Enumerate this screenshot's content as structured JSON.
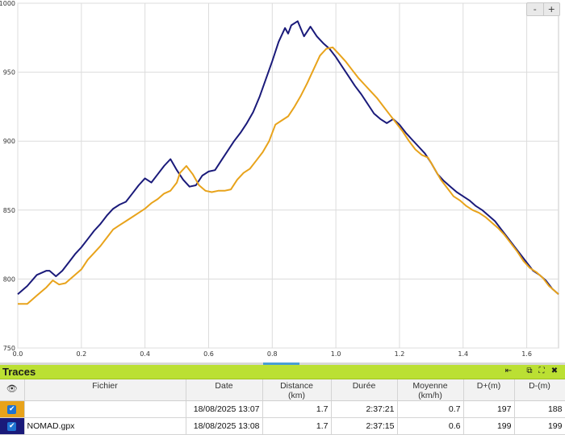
{
  "chart_data": {
    "type": "line",
    "xlim": [
      0,
      1.7
    ],
    "ylim": [
      750,
      1000
    ],
    "x_ticks": [
      "0.0",
      "0.2",
      "0.4",
      "0.6",
      "0.8",
      "1.0",
      "1.2",
      "1.4",
      "1.6"
    ],
    "y_ticks": [
      "750",
      "800",
      "850",
      "900",
      "950",
      "1000"
    ],
    "grid": true,
    "series": [
      {
        "color": "#1a1a7a",
        "points": [
          [
            0.0,
            789
          ],
          [
            0.03,
            795
          ],
          [
            0.06,
            803
          ],
          [
            0.09,
            806
          ],
          [
            0.1,
            806
          ],
          [
            0.12,
            802
          ],
          [
            0.14,
            806
          ],
          [
            0.16,
            812
          ],
          [
            0.18,
            818
          ],
          [
            0.2,
            823
          ],
          [
            0.22,
            829
          ],
          [
            0.24,
            835
          ],
          [
            0.26,
            840
          ],
          [
            0.28,
            846
          ],
          [
            0.3,
            851
          ],
          [
            0.32,
            854
          ],
          [
            0.34,
            856
          ],
          [
            0.36,
            862
          ],
          [
            0.38,
            868
          ],
          [
            0.4,
            873
          ],
          [
            0.42,
            870
          ],
          [
            0.44,
            876
          ],
          [
            0.46,
            882
          ],
          [
            0.48,
            887
          ],
          [
            0.5,
            879
          ],
          [
            0.52,
            872
          ],
          [
            0.54,
            867
          ],
          [
            0.56,
            868
          ],
          [
            0.58,
            875
          ],
          [
            0.6,
            878
          ],
          [
            0.62,
            879
          ],
          [
            0.64,
            886
          ],
          [
            0.66,
            893
          ],
          [
            0.68,
            900
          ],
          [
            0.7,
            906
          ],
          [
            0.72,
            913
          ],
          [
            0.74,
            921
          ],
          [
            0.76,
            932
          ],
          [
            0.78,
            945
          ],
          [
            0.8,
            958
          ],
          [
            0.82,
            972
          ],
          [
            0.84,
            982
          ],
          [
            0.85,
            978
          ],
          [
            0.86,
            984
          ],
          [
            0.88,
            987
          ],
          [
            0.9,
            976
          ],
          [
            0.92,
            983
          ],
          [
            0.94,
            976
          ],
          [
            0.96,
            971
          ],
          [
            0.98,
            967
          ],
          [
            1.0,
            961
          ],
          [
            1.02,
            954
          ],
          [
            1.04,
            947
          ],
          [
            1.06,
            940
          ],
          [
            1.08,
            934
          ],
          [
            1.1,
            927
          ],
          [
            1.12,
            920
          ],
          [
            1.14,
            916
          ],
          [
            1.16,
            913
          ],
          [
            1.18,
            916
          ],
          [
            1.2,
            912
          ],
          [
            1.22,
            906
          ],
          [
            1.24,
            901
          ],
          [
            1.26,
            896
          ],
          [
            1.28,
            891
          ],
          [
            1.3,
            884
          ],
          [
            1.32,
            876
          ],
          [
            1.34,
            871
          ],
          [
            1.36,
            867
          ],
          [
            1.38,
            863
          ],
          [
            1.4,
            860
          ],
          [
            1.42,
            857
          ],
          [
            1.44,
            853
          ],
          [
            1.46,
            850
          ],
          [
            1.48,
            846
          ],
          [
            1.5,
            842
          ],
          [
            1.52,
            836
          ],
          [
            1.54,
            830
          ],
          [
            1.56,
            824
          ],
          [
            1.58,
            818
          ],
          [
            1.6,
            812
          ],
          [
            1.62,
            806
          ],
          [
            1.64,
            803
          ],
          [
            1.66,
            799
          ],
          [
            1.68,
            793
          ],
          [
            1.7,
            789
          ]
        ]
      },
      {
        "color": "#e8a31b",
        "points": [
          [
            0.0,
            782
          ],
          [
            0.03,
            782
          ],
          [
            0.06,
            788
          ],
          [
            0.09,
            794
          ],
          [
            0.11,
            799
          ],
          [
            0.13,
            796
          ],
          [
            0.15,
            797
          ],
          [
            0.18,
            803
          ],
          [
            0.2,
            807
          ],
          [
            0.22,
            814
          ],
          [
            0.24,
            819
          ],
          [
            0.26,
            824
          ],
          [
            0.28,
            830
          ],
          [
            0.3,
            836
          ],
          [
            0.32,
            839
          ],
          [
            0.34,
            842
          ],
          [
            0.36,
            845
          ],
          [
            0.38,
            848
          ],
          [
            0.4,
            851
          ],
          [
            0.42,
            855
          ],
          [
            0.44,
            858
          ],
          [
            0.46,
            862
          ],
          [
            0.48,
            864
          ],
          [
            0.5,
            870
          ],
          [
            0.51,
            877
          ],
          [
            0.53,
            882
          ],
          [
            0.55,
            876
          ],
          [
            0.57,
            868
          ],
          [
            0.59,
            864
          ],
          [
            0.61,
            863
          ],
          [
            0.63,
            864
          ],
          [
            0.65,
            864
          ],
          [
            0.67,
            865
          ],
          [
            0.69,
            872
          ],
          [
            0.71,
            877
          ],
          [
            0.73,
            880
          ],
          [
            0.75,
            886
          ],
          [
            0.77,
            892
          ],
          [
            0.79,
            900
          ],
          [
            0.81,
            912
          ],
          [
            0.83,
            915
          ],
          [
            0.85,
            918
          ],
          [
            0.87,
            925
          ],
          [
            0.89,
            933
          ],
          [
            0.91,
            942
          ],
          [
            0.93,
            952
          ],
          [
            0.95,
            962
          ],
          [
            0.97,
            967
          ],
          [
            0.99,
            968
          ],
          [
            1.01,
            963
          ],
          [
            1.03,
            958
          ],
          [
            1.05,
            952
          ],
          [
            1.07,
            946
          ],
          [
            1.09,
            941
          ],
          [
            1.11,
            936
          ],
          [
            1.13,
            931
          ],
          [
            1.15,
            925
          ],
          [
            1.17,
            919
          ],
          [
            1.19,
            913
          ],
          [
            1.21,
            907
          ],
          [
            1.23,
            900
          ],
          [
            1.25,
            894
          ],
          [
            1.27,
            890
          ],
          [
            1.29,
            888
          ],
          [
            1.31,
            880
          ],
          [
            1.33,
            872
          ],
          [
            1.35,
            866
          ],
          [
            1.37,
            860
          ],
          [
            1.39,
            857
          ],
          [
            1.41,
            853
          ],
          [
            1.43,
            850
          ],
          [
            1.45,
            848
          ],
          [
            1.47,
            845
          ],
          [
            1.49,
            841
          ],
          [
            1.51,
            837
          ],
          [
            1.53,
            832
          ],
          [
            1.55,
            826
          ],
          [
            1.57,
            820
          ],
          [
            1.59,
            813
          ],
          [
            1.61,
            808
          ],
          [
            1.63,
            805
          ],
          [
            1.65,
            801
          ],
          [
            1.67,
            795
          ],
          [
            1.7,
            789
          ]
        ]
      }
    ]
  },
  "zoom": {
    "minus": "-",
    "plus": "+"
  },
  "traces": {
    "title": "Traces",
    "icons": {
      "export": "⇤",
      "restore": "⧉",
      "expand": "⛶",
      "close": "✖"
    },
    "columns": {
      "visible": "👁",
      "file": "Fichier",
      "date": "Date",
      "distance": "Distance",
      "distance_unit": "(km)",
      "duration": "Durée",
      "average": "Moyenne",
      "average_unit": "(km/h)",
      "d_plus": "D+(m)",
      "d_minus": "D-(m)"
    },
    "rows": [
      {
        "color": "#e8a31b",
        "file": "",
        "date": "18/08/2025 13:07",
        "distance": "1.7",
        "duration": "2:37:21",
        "average": "0.7",
        "d_plus": "197",
        "d_minus": "188"
      },
      {
        "color": "#1a1a7a",
        "file": "NOMAD.gpx",
        "date": "18/08/2025 13:08",
        "distance": "1.7",
        "duration": "2:37:15",
        "average": "0.6",
        "d_plus": "199",
        "d_minus": "199"
      }
    ]
  }
}
